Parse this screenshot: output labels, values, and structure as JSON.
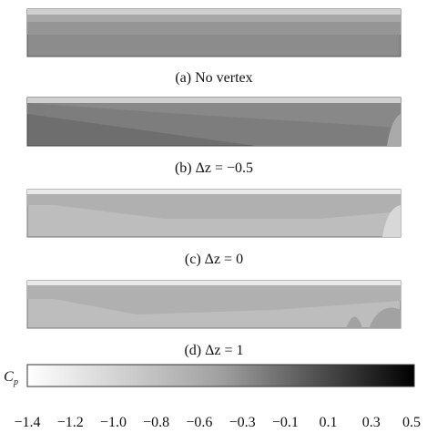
{
  "panels": [
    {
      "caption": "(a)  No vertex"
    },
    {
      "caption": "(b)  Δz = −0.5"
    },
    {
      "caption": "(c)  Δz = 0"
    },
    {
      "caption": "(d)  Δz = 1"
    }
  ],
  "colorbar": {
    "symbol": "C",
    "subscript": "p",
    "ticks": [
      "−1.4",
      "−1.2",
      "−1.0",
      "−0.8",
      "−0.6",
      "−0.3",
      "−0.1",
      "0.1",
      "0.3",
      "0.5"
    ]
  }
}
